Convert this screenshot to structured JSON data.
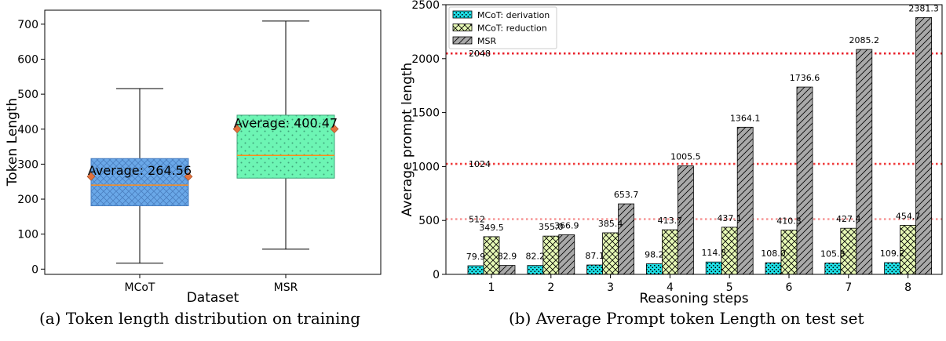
{
  "chart_data": [
    {
      "type": "box",
      "caption": "(a) Token length distribution on training",
      "xlabel": "Dataset",
      "ylabel": "Token Length",
      "ylim": [
        -15,
        740
      ],
      "yticks": [
        0,
        100,
        200,
        300,
        400,
        500,
        600,
        700
      ],
      "grid": false,
      "boxes": [
        {
          "name": "MCoT",
          "whisker_low": 17,
          "q1": 181,
          "median": 240,
          "mean": 264.56,
          "q3": 316,
          "whisker_high": 516,
          "mean_label": "Average: 264.56",
          "color": "#6aa8e8",
          "edge_color": "#4a7fc0",
          "hatch": "crosshatch"
        },
        {
          "name": "MSR",
          "whisker_low": 57,
          "q1": 260,
          "median": 325,
          "mean": 400.47,
          "q3": 440,
          "whisker_high": 709,
          "mean_label": "Average: 400.47",
          "color": "#6df5b4",
          "edge_color": "#3fa57a",
          "hatch": "dots"
        }
      ],
      "median_color": "#ff8c1a",
      "mean_marker_color": "#e3713c"
    },
    {
      "type": "bar",
      "caption": "(b) Average Prompt token Length on test set",
      "xlabel": "Reasoning steps",
      "ylabel": "Average prompt length",
      "ylim": [
        0,
        2500
      ],
      "yticks": [
        0,
        500,
        1000,
        1500,
        2000,
        2500
      ],
      "categories": [
        "1",
        "2",
        "3",
        "4",
        "5",
        "6",
        "7",
        "8"
      ],
      "legend_position": "top-left",
      "grid": false,
      "series": [
        {
          "name": "MCoT: derivation",
          "values": [
            79.9,
            82.2,
            87.1,
            98.2,
            114.8,
            108.0,
            105.8,
            109.2
          ],
          "labels": [
            "79.9",
            "82.2",
            "87.1",
            "98.2",
            "114.8",
            "108.0",
            "105.8",
            "109.2"
          ],
          "color": "#1fe3ea",
          "hatch": "dots"
        },
        {
          "name": "MCoT: reduction",
          "values": [
            349.5,
            355.0,
            385.4,
            413.7,
            437.1,
            410.3,
            427.4,
            454.7
          ],
          "labels": [
            "349.5",
            "355.0",
            "385.4",
            "413.7",
            "437.1",
            "410.3",
            "427.4",
            "454.7"
          ],
          "color": "#e6f8b5",
          "hatch": "crosshatch"
        },
        {
          "name": "MSR",
          "values": [
            82.9,
            366.9,
            653.7,
            1005.5,
            1364.1,
            1736.6,
            2085.2,
            2381.3
          ],
          "labels": [
            "82.9",
            "366.9",
            "653.7",
            "1005.5",
            "1364.1",
            "1736.6",
            "2085.2",
            "2381.3"
          ],
          "color": "#a9a9a9",
          "hatch": "diagonal"
        }
      ],
      "reference_lines": [
        {
          "value": 2048,
          "label": "2048",
          "color": "#e8202a"
        },
        {
          "value": 1024,
          "label": "1024",
          "color": "#ef3b3b"
        },
        {
          "value": 512,
          "label": "512",
          "color": "#f79a9a"
        }
      ]
    }
  ]
}
